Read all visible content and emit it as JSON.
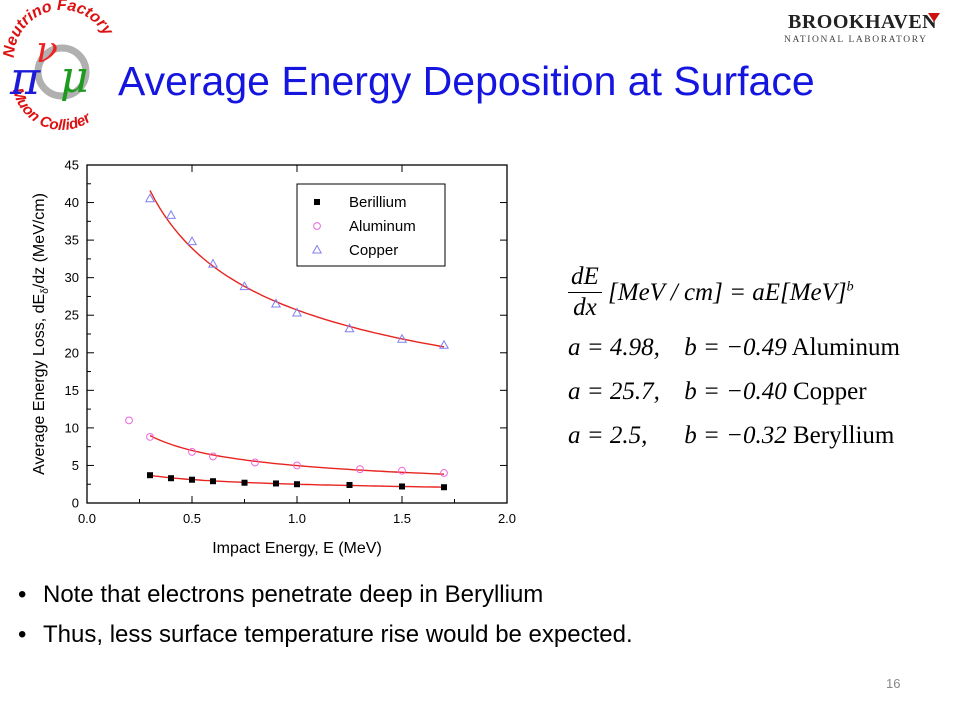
{
  "logo_left": {
    "top_text": "Neutrino Factory",
    "bottom_text": "Muon Collider",
    "glyph_pi": "π",
    "glyph_mu": "μ",
    "glyph_nu": "ν"
  },
  "logo_right": {
    "name": "BROOKHAVEN",
    "sub": "NATIONAL LABORATORY"
  },
  "slide": {
    "title": "Average Energy Deposition at Surface",
    "page_number": "16"
  },
  "colors": {
    "title": "#1515e0",
    "fit_line": "#e8241f",
    "beryllium": "#000000",
    "aluminum": "#ee66dd",
    "copper": "#8080f0"
  },
  "formula": {
    "numerator": "dE",
    "denominator": "dx",
    "equation": "[MeV / cm] = aE[MeV]",
    "exponent": "b",
    "rows": [
      {
        "a": "a = 4.98,",
        "b": "b = −0.49",
        "material": "Aluminum"
      },
      {
        "a": "a = 25.7,",
        "b": "b = −0.40",
        "material": "Copper"
      },
      {
        "a": "a = 2.5,",
        "b": "b = −0.32",
        "material": "Beryllium"
      }
    ]
  },
  "bullets": [
    "Note that electrons penetrate deep in Beryllium",
    "Thus, less surface temperature rise would be expected."
  ],
  "chart_data": {
    "type": "scatter",
    "xlabel": "Impact Energy, E (MeV)",
    "ylabel": "Average Energy Loss, dE",
    "ylabel_sub": "δ",
    "ylabel_rest": "/dz (MeV/cm)",
    "xlim": [
      0.0,
      2.0
    ],
    "ylim": [
      0,
      45
    ],
    "x_ticks": [
      "0.0",
      "0.5",
      "1.0",
      "1.5",
      "2.0"
    ],
    "y_ticks": [
      "0",
      "5",
      "10",
      "15",
      "20",
      "25",
      "30",
      "35",
      "40",
      "45"
    ],
    "legend_position": "top-right",
    "grid": false,
    "series": [
      {
        "name": "Berillium",
        "marker": "square",
        "x": [
          0.3,
          0.4,
          0.5,
          0.6,
          0.75,
          0.9,
          1.0,
          1.25,
          1.5,
          1.7
        ],
        "y": [
          3.7,
          3.3,
          3.1,
          2.9,
          2.7,
          2.6,
          2.5,
          2.4,
          2.2,
          2.1
        ],
        "fit": {
          "a": 2.5,
          "b": -0.32,
          "x_range": [
            0.3,
            1.7
          ]
        }
      },
      {
        "name": "Aluminum",
        "marker": "circle",
        "x": [
          0.2,
          0.3,
          0.5,
          0.6,
          0.8,
          1.0,
          1.3,
          1.5,
          1.7
        ],
        "y": [
          11.0,
          8.8,
          6.8,
          6.2,
          5.4,
          5.0,
          4.5,
          4.3,
          4.0
        ],
        "fit": {
          "a": 4.98,
          "b": -0.49,
          "x_range": [
            0.3,
            1.7
          ]
        }
      },
      {
        "name": "Copper",
        "marker": "triangle",
        "x": [
          0.3,
          0.4,
          0.5,
          0.6,
          0.75,
          0.9,
          1.0,
          1.25,
          1.5,
          1.7
        ],
        "y": [
          40.5,
          38.3,
          34.8,
          31.8,
          28.8,
          26.5,
          25.3,
          23.2,
          21.8,
          21.0
        ],
        "fit": {
          "a": 25.7,
          "b": -0.4,
          "x_range": [
            0.3,
            1.7
          ]
        }
      }
    ]
  }
}
